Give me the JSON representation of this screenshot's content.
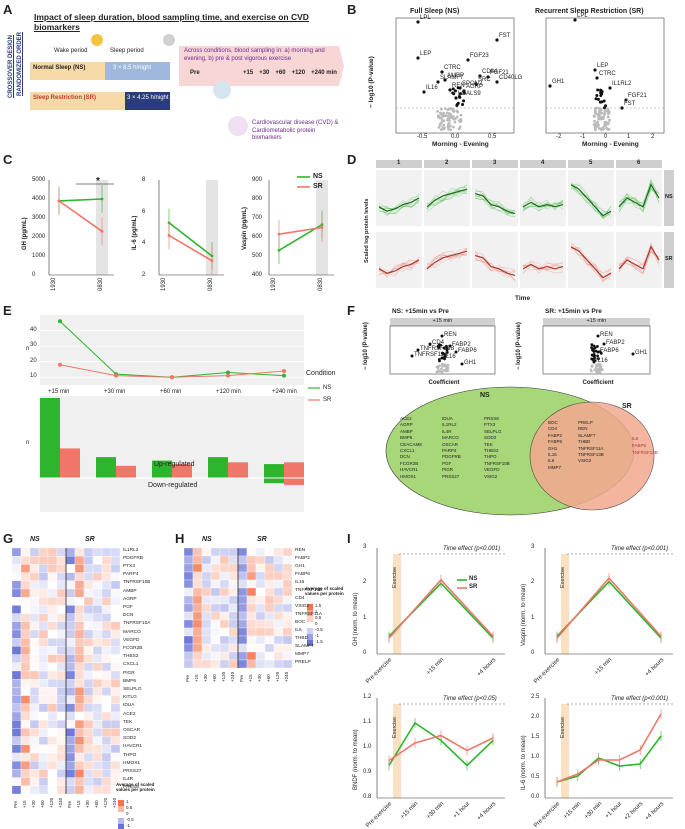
{
  "labels": {
    "a": "A",
    "b": "B",
    "c": "C",
    "d": "D",
    "e": "E",
    "f": "F",
    "g": "G",
    "h": "H",
    "i": "I"
  },
  "a": {
    "title": "Impact of sleep duration, blood sampling time, and exercise on CVD biomarkers",
    "wake": "Wake period",
    "sleep": "Sleep period",
    "ns_label": "Normal Sleep (NS)",
    "ns_val": "3 × 8.5 h/night",
    "sr_label": "Sleep Restriction (SR)",
    "sr_val": "3 × 4.25 h/night",
    "crossover": "CROSSOVER DESIGN",
    "randomized": "RANDOMIZED ORDER",
    "arrow_text": "Across conditions, blood sampling in: a) morning and evening, b) pre & post vigorous exercise",
    "pre": "Pre",
    "times": [
      "+15",
      "+30",
      "+60",
      "+120",
      "+240 min"
    ],
    "cvd": "Cardiovascular disease (CVD) & Cardiometabolic protein biomarkers"
  },
  "b": {
    "left_title": "Full Sleep (NS)",
    "right_title": "Recurrent Sleep Restriction (SR)",
    "ylabel": "− log10 (P-value)",
    "xlabel": "Morning - Evening",
    "left_xticks": [
      "-0.5",
      "0.0",
      "0.5"
    ],
    "right_xticks": [
      "-2",
      "-1",
      "0",
      "1",
      "2"
    ],
    "left_labels": [
      "LPL",
      "LEP",
      "FGF23",
      "FST",
      "CTRC",
      "AMBP",
      "CD84",
      "FGF21",
      "SLAMF7",
      "SPON2",
      "SRC",
      "CD40LG",
      "IL16",
      "REN",
      "AGRP",
      "LGALS9"
    ],
    "right_labels": [
      "LPL",
      "LEP",
      "CTRC",
      "GH1",
      "IL1RL2",
      "FGF21",
      "FST"
    ]
  },
  "c": {
    "legend": [
      "NS",
      "SR"
    ],
    "star": "*",
    "panels": [
      {
        "ylabel": "GH (pg/mL)",
        "yticks": [
          "5000",
          "4000",
          "3000",
          "2000",
          "1000",
          "0"
        ],
        "xticks": [
          "1930",
          "0830"
        ]
      },
      {
        "ylabel": "IL-6 (pg/mL)",
        "yticks": [
          "8",
          "6",
          "4",
          "2"
        ],
        "xticks": [
          "1930",
          "0830"
        ]
      },
      {
        "ylabel": "Vaspin (pg/mL)",
        "yticks": [
          "900",
          "800",
          "700",
          "600",
          "500",
          "400"
        ],
        "xticks": [
          "1930",
          "0830"
        ]
      }
    ]
  },
  "d": {
    "clusters": [
      "1",
      "2",
      "3",
      "4",
      "5",
      "6"
    ],
    "rows": [
      "NS",
      "SR"
    ],
    "ylabel": "Scaled log protein levels",
    "xlabel": "Time"
  },
  "e": {
    "xticks": [
      "+15 min",
      "+30 min",
      "+60 min",
      "+120 min",
      "+240 min"
    ],
    "yticks_top": [
      "40",
      "30",
      "20",
      "10"
    ],
    "legend_title": "Condition",
    "legend": [
      "NS",
      "SR"
    ],
    "up": "Up-regulated",
    "down": "Down-regulated",
    "n": "n"
  },
  "f": {
    "ns_title": "NS: +15min vs Pre",
    "sr_title": "SR: +15min vs Pre",
    "strip": "+15 min",
    "xlabel": "Coefficient",
    "ylabel": "− log10 (P-value)",
    "ns_labels": [
      "REN",
      "CD4",
      "FABP2",
      "TNFRSF13B",
      "FABP6",
      "TNFRSF11A",
      "IL16",
      "GH1"
    ],
    "sr_labels": [
      "REN",
      "FABP2",
      "FABP6",
      "GH1",
      "IL16"
    ],
    "venn_ns": "NS",
    "venn_sr": "SR",
    "ns_only": [
      "ACE2",
      "AGRP",
      "AMBP",
      "BMP6",
      "CEACAM8",
      "CXCL1",
      "DCN",
      "FCGR2B",
      "HAVCR1",
      "HMOX1",
      "IDUA",
      "IL1RL2",
      "IL4R",
      "MARCO",
      "OSCAR",
      "PARP4",
      "PDGFRB",
      "PGF",
      "PIGR",
      "PRSS27",
      "PRSS8",
      "PTX3",
      "SELPLG",
      "SOD2",
      "TEK",
      "THBS2",
      "THPO",
      "TNFRSF10B",
      "VEGFD",
      "VSIG2"
    ],
    "both": [
      "BOC",
      "CD4",
      "FABP2",
      "FABP6",
      "GH1",
      "IL16",
      "IL6",
      "MMP7",
      "PRELP",
      "REN",
      "SLAMF7",
      "THBD",
      "TNFRSF11A",
      "TNFRSF13B",
      "VSIG2"
    ],
    "sr_only": [
      "IL6",
      "FABP6",
      "TNFRSF13B"
    ]
  },
  "g": {
    "ns": "NS",
    "sr": "SR",
    "rows": [
      "IL1RL2",
      "PDGFRB",
      "PTX3",
      "PARP4",
      "TNFRSF10B",
      "AMBP",
      "AGRP",
      "PGF",
      "DCN",
      "TNFRSF10A",
      "MARCO",
      "VEGFD",
      "FCGR2B",
      "THBS2",
      "CXCL1",
      "PIGR",
      "BMP6",
      "SELPLG",
      "KITLG",
      "IDUA",
      "ACE2",
      "TEK",
      "OSCAR",
      "SOD2",
      "HAVCR1",
      "THPO",
      "HMOX1",
      "PRSS27",
      "IL4R",
      "PRSS8"
    ],
    "xticks": [
      "Pre",
      "+15",
      "+30",
      "+60",
      "+120",
      "+240",
      "Pre",
      "+15",
      "+30",
      "+60",
      "+120",
      "+240"
    ],
    "legend_title": "Average of scaled values per protein",
    "legend_ticks": [
      "1",
      "0.5",
      "0",
      "-0.5",
      "-1"
    ]
  },
  "h": {
    "ns": "NS",
    "sr": "SR",
    "rows": [
      "REN",
      "FABP2",
      "GH1",
      "FABP6",
      "IL16",
      "TNFRSF13B",
      "CD4",
      "VSIG2",
      "TNFRSF11A",
      "BOC",
      "IL6",
      "THBD",
      "SLAMF7",
      "MMP7",
      "PRELP"
    ],
    "xticks": [
      "Pre",
      "+15",
      "+30",
      "+60",
      "+120",
      "+240",
      "Pre",
      "+15",
      "+30",
      "+60",
      "+120",
      "+240"
    ],
    "legend_title": "Average of scaled values per protein",
    "legend_ticks": [
      "1.5",
      "1",
      "0.5",
      "0",
      "-0.5",
      "-1",
      "-1.5"
    ]
  },
  "i": {
    "legend": [
      "NS",
      "SR"
    ],
    "exercise": "Exercise",
    "panels": [
      {
        "ylabel": "GH (norm. to mean)",
        "effect": "Time effect (p<0.001)",
        "yticks": [
          "3",
          "2",
          "1",
          "0"
        ],
        "xticks": [
          "Pre-exercise",
          "+15 min",
          "+4 hours"
        ]
      },
      {
        "ylabel": "Vaspin (norm. to mean)",
        "effect": "Time effect (p<0.001)",
        "yticks": [
          "3",
          "2",
          "1",
          "0"
        ],
        "xticks": [
          "Pre-exercise",
          "+15 min",
          "+4 hours"
        ]
      },
      {
        "ylabel": "BNDF (norm. to mean)",
        "effect": "Time effect (p<0.05)",
        "yticks": [
          "1.2",
          "1.1",
          "1.0",
          "0.9",
          "0.8"
        ],
        "xticks": [
          "Pre-exercise",
          "+15 min",
          "+30 min",
          "+1 hour",
          "+4 hours"
        ]
      },
      {
        "ylabel": "IL-6 (norm. to mean)",
        "effect": "Time effect (p<0.001)",
        "yticks": [
          "2.5",
          "2.0",
          "1.5",
          "1.0",
          "0.5",
          "0.0"
        ],
        "xticks": [
          "Pre-exercise",
          "+15 min",
          "+30 min",
          "+1 hour",
          "+2 hours",
          "+4 hours"
        ]
      }
    ]
  },
  "colors": {
    "ns": "#2db52d",
    "sr": "#f0766a",
    "gray": "#bbbbbb",
    "accent": "#c0392b"
  },
  "chart_data": [
    {
      "type": "line",
      "panel": "C-GH",
      "categories": [
        "1930",
        "0830"
      ],
      "series": [
        {
          "name": "NS",
          "values": [
            3900,
            4000
          ]
        },
        {
          "name": "SR",
          "values": [
            3900,
            2300
          ]
        }
      ],
      "ylim": [
        0,
        5000
      ]
    },
    {
      "type": "line",
      "panel": "C-IL6",
      "categories": [
        "1930",
        "0830"
      ],
      "series": [
        {
          "name": "NS",
          "values": [
            5.3,
            3.2
          ]
        },
        {
          "name": "SR",
          "values": [
            4.5,
            2.9
          ]
        }
      ],
      "ylim": [
        2,
        8
      ]
    },
    {
      "type": "line",
      "panel": "C-Vaspin",
      "categories": [
        "1930",
        "0830"
      ],
      "series": [
        {
          "name": "NS",
          "values": [
            530,
            665
          ]
        },
        {
          "name": "SR",
          "values": [
            615,
            650
          ]
        }
      ],
      "ylim": [
        400,
        900
      ]
    },
    {
      "type": "line",
      "panel": "E-top",
      "categories": [
        "+15 min",
        "+30 min",
        "+60 min",
        "+120 min",
        "+240 min"
      ],
      "series": [
        {
          "name": "NS",
          "values": [
            46,
            12,
            10,
            13,
            11
          ]
        },
        {
          "name": "SR",
          "values": [
            18,
            11,
            10,
            11,
            14
          ]
        }
      ],
      "ylim": [
        5,
        50
      ]
    },
    {
      "type": "bar",
      "panel": "E-bottom",
      "categories": [
        "+15 min",
        "+30 min",
        "+60 min",
        "+120 min",
        "+240 min"
      ],
      "series": [
        {
          "name": "NS up",
          "values": [
            46,
            12,
            10,
            12,
            8
          ]
        },
        {
          "name": "SR up",
          "values": [
            17,
            7,
            8,
            9,
            9
          ]
        },
        {
          "name": "NS down",
          "values": [
            0,
            0,
            0,
            0,
            -3
          ]
        },
        {
          "name": "SR down",
          "values": [
            0,
            0,
            0,
            0,
            -4
          ]
        }
      ]
    },
    {
      "type": "line",
      "panel": "I-GH",
      "categories": [
        "Pre-exercise",
        "+15 min",
        "+4 hours"
      ],
      "series": [
        {
          "name": "NS",
          "values": [
            0.5,
            2.0,
            0.45
          ]
        },
        {
          "name": "SR",
          "values": [
            0.45,
            2.1,
            0.5
          ]
        }
      ],
      "ylim": [
        0,
        3
      ]
    },
    {
      "type": "line",
      "panel": "I-Vaspin",
      "categories": [
        "Pre-exercise",
        "+15 min",
        "+4 hours"
      ],
      "series": [
        {
          "name": "NS",
          "values": [
            0.5,
            2.05,
            0.45
          ]
        },
        {
          "name": "SR",
          "values": [
            0.45,
            2.15,
            0.5
          ]
        }
      ],
      "ylim": [
        0,
        3
      ]
    },
    {
      "type": "line",
      "panel": "I-BNDF",
      "categories": [
        "Pre-exercise",
        "+15 min",
        "+30 min",
        "+1 hour",
        "+4 hours"
      ],
      "series": [
        {
          "name": "NS",
          "values": [
            0.93,
            1.1,
            1.03,
            0.93,
            1.03
          ]
        },
        {
          "name": "SR",
          "values": [
            0.95,
            1.02,
            1.05,
            0.99,
            1.04
          ]
        }
      ],
      "ylim": [
        0.8,
        1.2
      ]
    },
    {
      "type": "line",
      "panel": "I-IL6",
      "categories": [
        "Pre-exercise",
        "+15 min",
        "+30 min",
        "+1 hour",
        "+2 hours",
        "+4 hours"
      ],
      "series": [
        {
          "name": "NS",
          "values": [
            0.4,
            0.55,
            1.0,
            0.8,
            0.85,
            1.55
          ]
        },
        {
          "name": "SR",
          "values": [
            0.4,
            0.6,
            0.95,
            0.95,
            1.2,
            2.1
          ]
        }
      ],
      "ylim": [
        0,
        2.5
      ]
    }
  ]
}
